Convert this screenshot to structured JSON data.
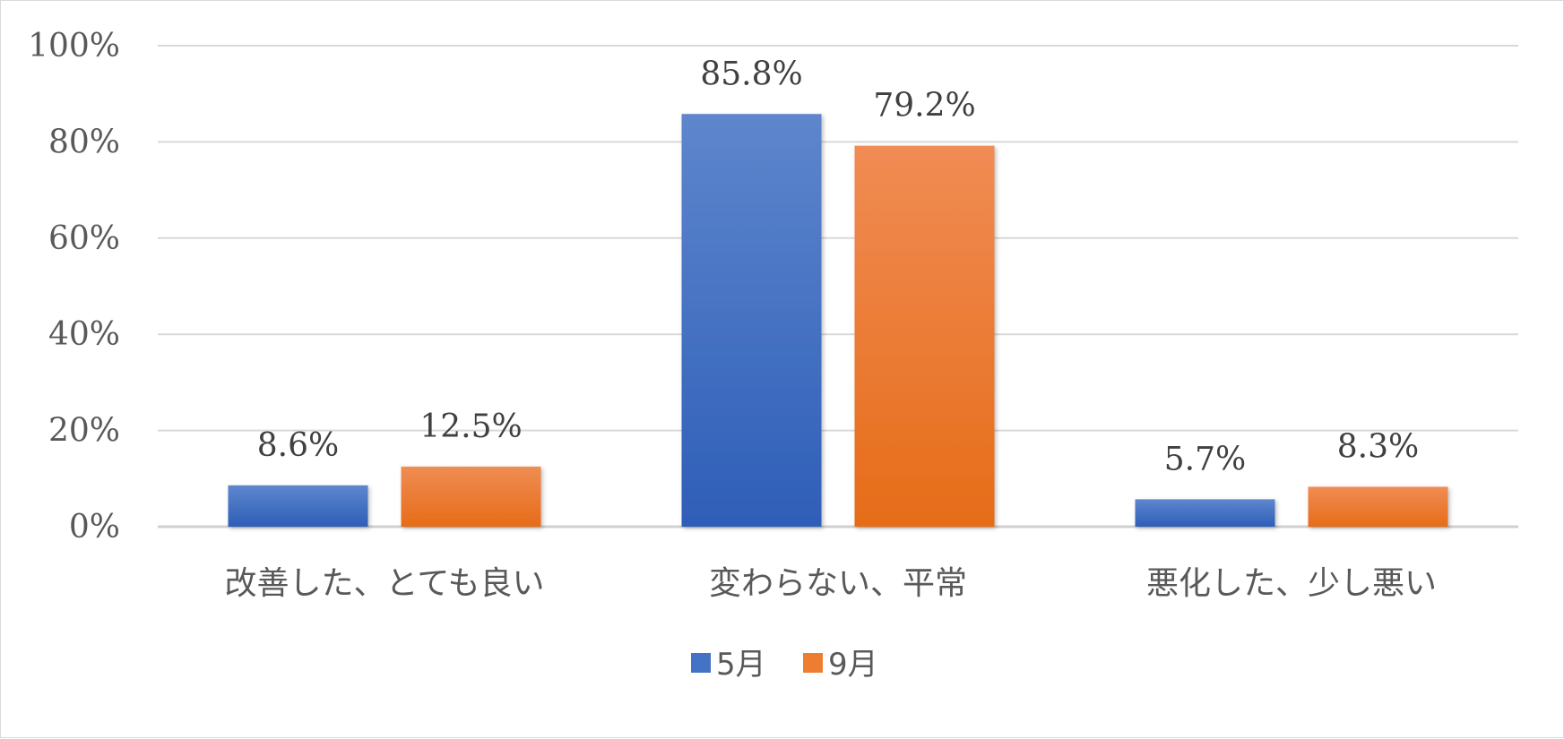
{
  "chart_data": {
    "type": "bar",
    "categories": [
      "改善した、とても良い",
      "変わらない、平常",
      "悪化した、少し悪い"
    ],
    "series": [
      {
        "name": "5月",
        "values": [
          8.6,
          85.8,
          5.7
        ],
        "labels": [
          "8.6%",
          "85.8%",
          "5.7%"
        ],
        "color": "#4472C4"
      },
      {
        "name": "9月",
        "values": [
          12.5,
          79.2,
          8.3
        ],
        "labels": [
          "12.5%",
          "79.2%",
          "8.3%"
        ],
        "color": "#ED7D31"
      }
    ],
    "ylim": [
      0,
      100
    ],
    "yticks": [
      0,
      20,
      40,
      60,
      80,
      100
    ],
    "ytick_labels": [
      "0%",
      "20%",
      "40%",
      "60%",
      "80%",
      "100%"
    ],
    "grid": true,
    "legend_position": "bottom"
  }
}
